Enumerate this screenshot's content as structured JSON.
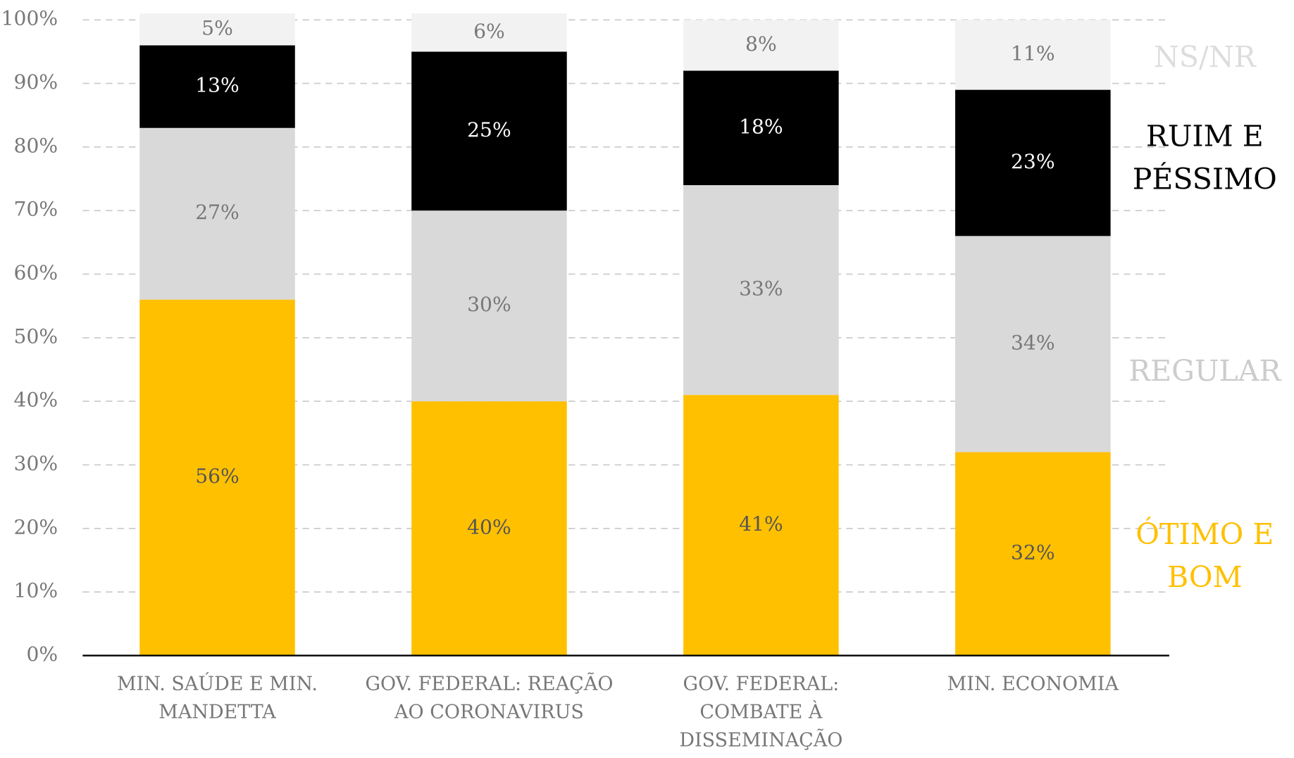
{
  "chart_data": {
    "type": "stacked_bar",
    "categories": [
      "MIN. SAÚDE E MIN. MANDETTA",
      "GOV. FEDERAL: REAÇÃO AO CORONAVIRUS",
      "GOV. FEDERAL: COMBATE À DISSEMINAÇÃO",
      "MIN. ECONOMIA"
    ],
    "series": [
      {
        "name": "ÓTIMO E BOM",
        "color": "#FFC000",
        "legend_color": "#FFC000",
        "label_color": "#555555",
        "values": [
          56,
          40,
          41,
          32
        ],
        "value_labels": [
          "56%",
          "40%",
          "41%",
          "32%"
        ]
      },
      {
        "name": "REGULAR",
        "color": "#D9D9D9",
        "legend_color": "#CCCCCC",
        "label_color": "#777777",
        "values": [
          27,
          30,
          33,
          34
        ],
        "value_labels": [
          "27%",
          "30%",
          "33%",
          "34%"
        ]
      },
      {
        "name": "RUIM E PÉSSIMO",
        "color": "#000000",
        "legend_color": "#000000",
        "label_color": "#FFFFFF",
        "values": [
          13,
          25,
          18,
          23
        ],
        "value_labels": [
          "13%",
          "25%",
          "18%",
          "23%"
        ]
      },
      {
        "name": "NS/NR",
        "color": "#F2F2F2",
        "legend_color": "#DDDDDD",
        "label_color": "#777777",
        "values": [
          5,
          6,
          8,
          11
        ],
        "value_labels": [
          "5%",
          "6%",
          "8%",
          "11%"
        ]
      }
    ],
    "ylim": [
      0,
      100
    ],
    "yticks": [
      {
        "value": 0,
        "label": "0%"
      },
      {
        "value": 10,
        "label": "10%"
      },
      {
        "value": 20,
        "label": "20%"
      },
      {
        "value": 30,
        "label": "30%"
      },
      {
        "value": 40,
        "label": "40%"
      },
      {
        "value": 50,
        "label": "50%"
      },
      {
        "value": 60,
        "label": "60%"
      },
      {
        "value": 70,
        "label": "70%"
      },
      {
        "value": 80,
        "label": "80%"
      },
      {
        "value": 90,
        "label": "90%"
      },
      {
        "value": 100,
        "label": "100%"
      }
    ],
    "grid": true
  }
}
